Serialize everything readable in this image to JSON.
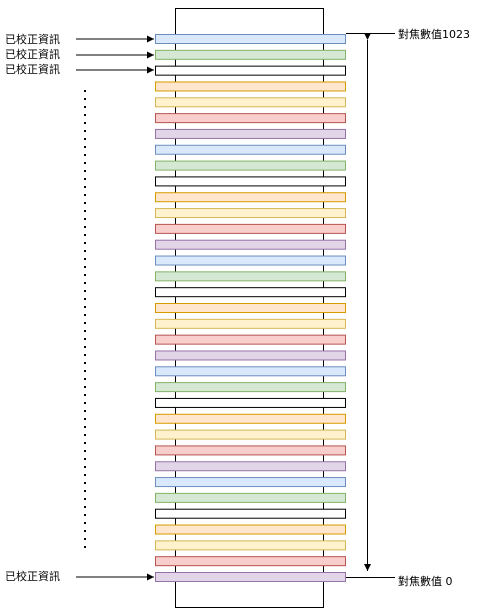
{
  "left_labels": [
    {
      "text": "已校正資訊"
    },
    {
      "text": "已校正資訊"
    },
    {
      "text": "已校正資訊"
    },
    {
      "text": "已校正資訊"
    }
  ],
  "right_labels": {
    "top": "對焦數值1023",
    "bottom": "對焦數值 0"
  },
  "bar_palette": [
    {
      "fill": "#dae8fc",
      "stroke": "#6c8ebf"
    },
    {
      "fill": "#d5e8d4",
      "stroke": "#82b366"
    },
    {
      "fill": "#ffffff",
      "stroke": "#000000"
    },
    {
      "fill": "#ffe6cc",
      "stroke": "#d79b00"
    },
    {
      "fill": "#fff2cc",
      "stroke": "#d6b656"
    },
    {
      "fill": "#f8cecc",
      "stroke": "#b85450"
    },
    {
      "fill": "#e1d5e7",
      "stroke": "#9673a6"
    }
  ],
  "bar_count": 35
}
